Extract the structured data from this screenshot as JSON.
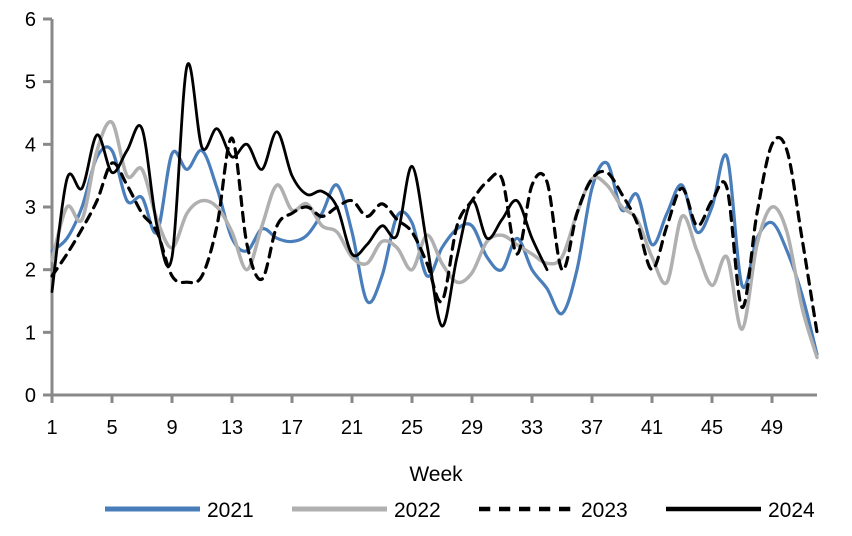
{
  "chart_data": {
    "type": "line",
    "title": "",
    "xlabel": "Week",
    "ylabel": "",
    "xlim": [
      1,
      52
    ],
    "ylim": [
      0,
      6
    ],
    "x_ticks": [
      1,
      5,
      9,
      13,
      17,
      21,
      25,
      29,
      33,
      37,
      41,
      45,
      49
    ],
    "y_ticks": [
      0,
      1,
      2,
      3,
      4,
      5,
      6
    ],
    "grid": false,
    "legend_position": "bottom",
    "axis_color": "#898989",
    "text_color": "#000000",
    "x": [
      1,
      2,
      3,
      4,
      5,
      6,
      7,
      8,
      9,
      10,
      11,
      12,
      13,
      14,
      15,
      16,
      17,
      18,
      19,
      20,
      21,
      22,
      23,
      24,
      25,
      26,
      27,
      28,
      29,
      30,
      31,
      32,
      33,
      34,
      35,
      36,
      37,
      38,
      39,
      40,
      41,
      42,
      43,
      44,
      45,
      46,
      47,
      48,
      49,
      50,
      51,
      52
    ],
    "series": [
      {
        "name": "2021",
        "color": "#4a7ebb",
        "style": "solid",
        "dash": null,
        "values": [
          2.3,
          2.5,
          3.0,
          3.8,
          3.9,
          3.1,
          3.15,
          2.6,
          3.85,
          3.6,
          3.9,
          3.3,
          2.5,
          2.3,
          2.65,
          2.5,
          2.45,
          2.55,
          2.9,
          3.35,
          2.6,
          1.5,
          1.9,
          2.85,
          2.75,
          1.9,
          2.35,
          2.65,
          2.7,
          2.2,
          2.0,
          2.5,
          2.0,
          1.7,
          1.3,
          2.0,
          3.3,
          3.7,
          2.95,
          3.2,
          2.4,
          2.9,
          3.35,
          2.6,
          3.0,
          3.8,
          1.75,
          2.5,
          2.75,
          2.3,
          1.6,
          0.65
        ]
      },
      {
        "name": "2022",
        "color": "#b0b0b0",
        "style": "solid",
        "dash": null,
        "values": [
          2.15,
          3.0,
          2.8,
          3.9,
          4.35,
          3.5,
          3.6,
          2.8,
          2.35,
          2.9,
          3.1,
          3.0,
          2.6,
          2.0,
          2.7,
          3.35,
          2.95,
          3.05,
          2.7,
          2.6,
          2.2,
          2.1,
          2.45,
          2.35,
          2.0,
          2.55,
          2.1,
          1.8,
          1.95,
          2.45,
          2.55,
          2.4,
          2.25,
          2.1,
          2.2,
          2.9,
          3.45,
          3.35,
          3.0,
          2.8,
          2.2,
          1.8,
          2.85,
          2.3,
          1.75,
          2.2,
          1.05,
          2.4,
          3.0,
          2.6,
          1.4,
          0.6
        ]
      },
      {
        "name": "2023",
        "color": "#000000",
        "style": "dashed",
        "dash": [
          9,
          7
        ],
        "values": [
          1.9,
          2.25,
          2.65,
          3.1,
          3.7,
          3.35,
          2.9,
          2.6,
          1.9,
          1.8,
          1.9,
          2.7,
          4.1,
          2.4,
          1.85,
          2.7,
          2.9,
          3.0,
          2.85,
          3.0,
          3.1,
          2.85,
          3.05,
          2.8,
          2.6,
          2.1,
          1.5,
          2.7,
          3.1,
          3.4,
          3.45,
          2.25,
          3.35,
          3.4,
          2.0,
          2.9,
          3.45,
          3.55,
          3.2,
          2.75,
          2.0,
          2.7,
          3.3,
          2.7,
          3.1,
          3.3,
          1.4,
          2.9,
          4.0,
          3.9,
          2.5,
          1.0
        ]
      },
      {
        "name": "2024",
        "color": "#000000",
        "style": "solid",
        "dash": null,
        "values": [
          1.65,
          3.45,
          3.3,
          4.15,
          3.55,
          3.9,
          4.25,
          2.7,
          2.2,
          5.25,
          3.95,
          4.25,
          3.8,
          4.0,
          3.6,
          4.2,
          3.5,
          3.2,
          3.25,
          3.0,
          2.25,
          2.4,
          2.7,
          2.55,
          3.65,
          2.4,
          1.1,
          2.2,
          3.1,
          2.5,
          2.8,
          3.1,
          2.5,
          2.0
        ]
      }
    ]
  }
}
